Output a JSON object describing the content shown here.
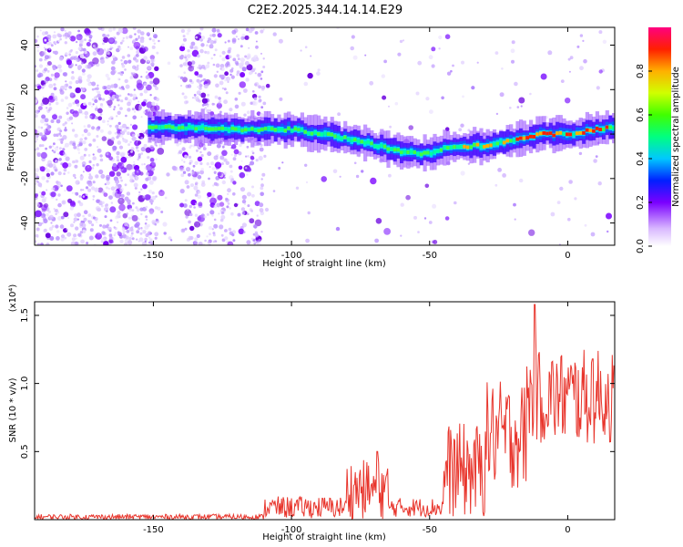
{
  "title": "C2E2.2025.344.14.14.E29",
  "chart_data": [
    {
      "type": "heatmap",
      "name": "spectrogram",
      "xlabel": "Height of straight line (km)",
      "ylabel": "Frequency (Hz)",
      "xlim": [
        -193,
        17
      ],
      "ylim": [
        -50,
        48
      ],
      "xticks": [
        -150,
        -100,
        -50,
        0
      ],
      "yticks": [
        -40,
        -20,
        0,
        20,
        40
      ],
      "ridge": {
        "x": [
          -152,
          -140,
          -120,
          -110,
          -100,
          -90,
          -80,
          -70,
          -60,
          -50,
          -45,
          -40,
          -30,
          -20,
          -10,
          0,
          10,
          17
        ],
        "freq": [
          3,
          3,
          2,
          2,
          2,
          0,
          -2,
          -5,
          -8,
          -9,
          -6,
          -6,
          -5,
          -3,
          0,
          0,
          2,
          3
        ]
      },
      "colorbar": {
        "label": "Normalized spectral amplitude",
        "range": [
          0,
          1
        ],
        "ticks": [
          "0.0",
          "0.2",
          "0.4",
          "0.6",
          "0.8"
        ],
        "tick_values": [
          0,
          0.2,
          0.4,
          0.6,
          0.8
        ]
      }
    },
    {
      "type": "line",
      "name": "snr",
      "xlabel": "Height of straight line (km)",
      "ylabel": "SNR (10 * v/v)",
      "scale_label": "(x10⁴)",
      "xlim": [
        -193,
        17
      ],
      "ylim": [
        0,
        1.6
      ],
      "xticks": [
        -150,
        -100,
        -50,
        0
      ],
      "yticks": [
        0.5,
        1.0,
        1.5
      ],
      "ytick_labels": [
        "0.5",
        "1.0",
        "1.5"
      ],
      "color": "#e8352c",
      "segments": [
        {
          "x0": -193,
          "x1": -110,
          "base": 0.02,
          "noise": 0.02
        },
        {
          "x0": -110,
          "x1": -80,
          "base": 0.09,
          "noise": 0.08
        },
        {
          "x0": -80,
          "x1": -65,
          "base": 0.22,
          "noise": 0.22
        },
        {
          "x0": -65,
          "x1": -45,
          "base": 0.09,
          "noise": 0.07
        },
        {
          "x0": -45,
          "x1": -30,
          "base": 0.36,
          "noise": 0.35
        },
        {
          "x0": -30,
          "x1": -15,
          "base": 0.62,
          "noise": 0.4
        },
        {
          "x0": -15,
          "x1": 17,
          "base": 0.9,
          "noise": 0.35
        }
      ],
      "peaks": [
        {
          "x": -69,
          "y": 0.5
        },
        {
          "x": -12,
          "y": 1.58
        },
        {
          "x": 9,
          "y": 1.18
        }
      ]
    }
  ]
}
